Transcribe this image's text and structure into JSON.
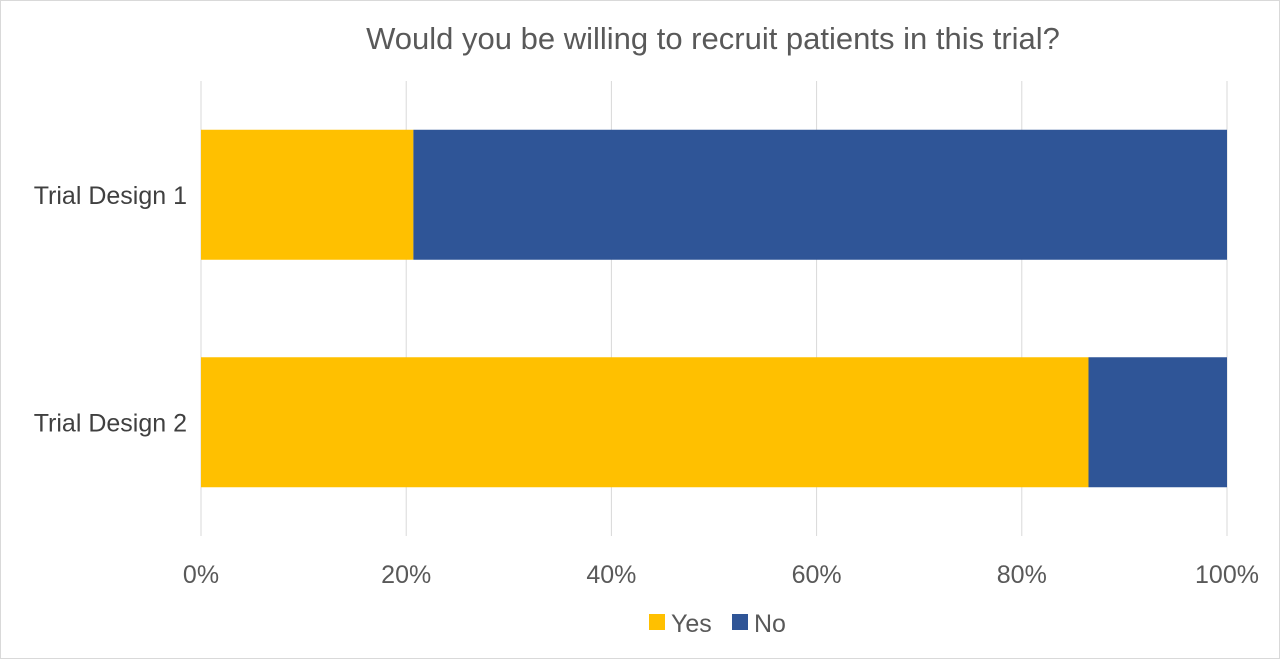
{
  "chart_data": {
    "type": "bar",
    "orientation": "horizontal",
    "stacked": "percent",
    "title": "Would you be willing to recruit patients in this trial?",
    "categories": [
      "Trial Design 1",
      "Trial Design 2"
    ],
    "series": [
      {
        "name": "Yes",
        "values": [
          20.7,
          86.5
        ],
        "color": "#FFC000"
      },
      {
        "name": "No",
        "values": [
          79.3,
          13.5
        ],
        "color": "#2F5597"
      }
    ],
    "x_ticks": [
      "0%",
      "20%",
      "40%",
      "60%",
      "80%",
      "100%"
    ],
    "xlim": [
      0,
      100
    ],
    "grid": "vertical",
    "legend": "bottom"
  }
}
